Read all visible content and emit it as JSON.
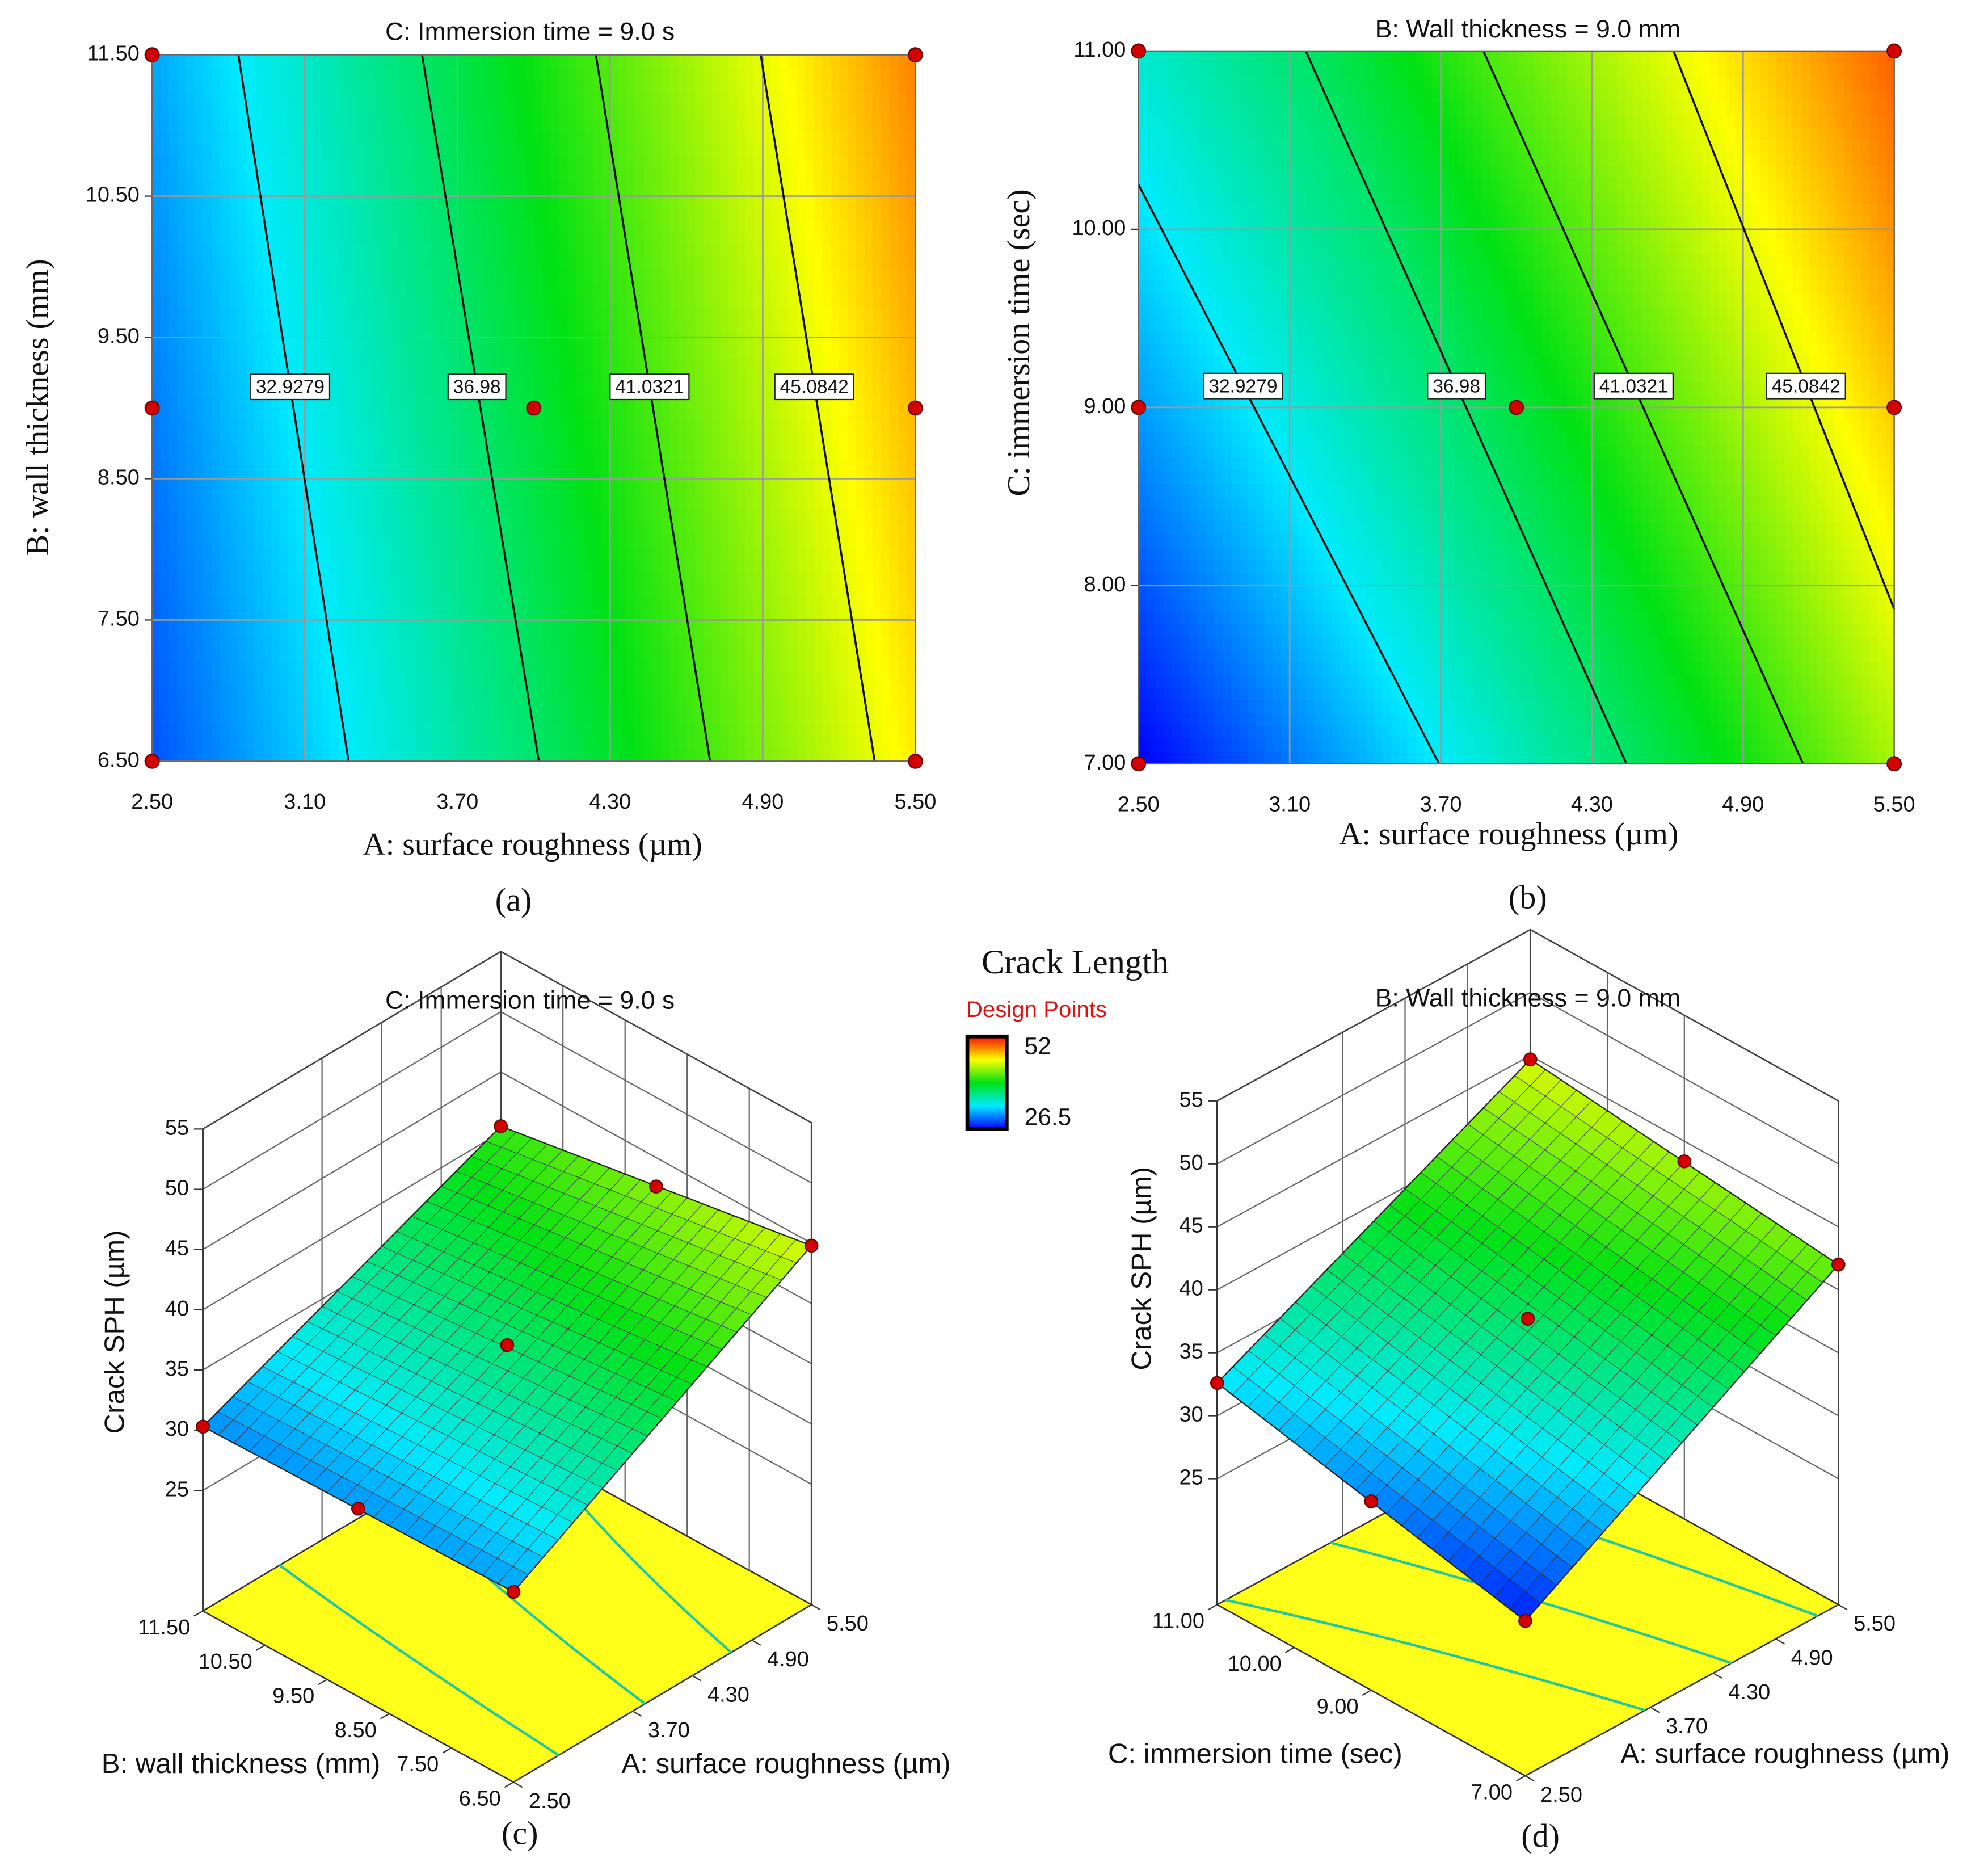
{
  "chart_data": [
    {
      "type": "contour",
      "title": "C: Immersion time = 9.0 s",
      "xlabel": "A: surface roughness (µm)",
      "ylabel": "B: wall thickness (mm)",
      "caption": "(a)",
      "xlim": [
        2.5,
        5.5
      ],
      "ylim": [
        6.5,
        11.5
      ],
      "xticks": [
        {
          "value": 2.5,
          "label": "2.50"
        },
        {
          "value": 3.1,
          "label": "3.10"
        },
        {
          "value": 3.7,
          "label": "3.70"
        },
        {
          "value": 4.3,
          "label": "4.30"
        },
        {
          "value": 4.9,
          "label": "4.90"
        },
        {
          "value": 5.5,
          "label": "5.50"
        }
      ],
      "yticks": [
        {
          "value": 6.5,
          "label": "6.50"
        },
        {
          "value": 7.5,
          "label": "7.50"
        },
        {
          "value": 8.5,
          "label": "8.50"
        },
        {
          "value": 9.5,
          "label": "9.50"
        },
        {
          "value": 10.5,
          "label": "10.50"
        },
        {
          "value": 11.5,
          "label": "11.50"
        }
      ],
      "grid": true,
      "contours": [
        {
          "level": 32.9279,
          "x": [
            2.839,
            3.272
          ],
          "y": [
            11.5,
            6.5
          ]
        },
        {
          "level": 36.98,
          "x": [
            3.561,
            4.02
          ],
          "y": [
            11.5,
            6.5
          ]
        },
        {
          "level": 41.0321,
          "x": [
            4.244,
            4.693
          ],
          "y": [
            11.5,
            6.5
          ]
        },
        {
          "level": 45.0842,
          "x": [
            4.892,
            5.34
          ],
          "y": [
            11.5,
            6.5
          ]
        }
      ],
      "points": {
        "x": [
          2.5,
          2.5,
          2.5,
          4.0,
          5.5,
          5.5,
          5.5
        ],
        "y": [
          6.5,
          9.0,
          11.5,
          9.0,
          6.5,
          9.0,
          11.5
        ]
      },
      "point_color": "#d40000"
    },
    {
      "type": "contour",
      "title": "B: Wall thickness = 9.0 mm",
      "xlabel": "A: surface roughness (µm)",
      "ylabel": "C: immersion time (sec)",
      "caption": "(b)",
      "xlim": [
        2.5,
        5.5
      ],
      "ylim": [
        7.0,
        11.0
      ],
      "xticks": [
        {
          "value": 2.5,
          "label": "2.50"
        },
        {
          "value": 3.1,
          "label": "3.10"
        },
        {
          "value": 3.7,
          "label": "3.70"
        },
        {
          "value": 4.3,
          "label": "4.30"
        },
        {
          "value": 4.9,
          "label": "4.90"
        },
        {
          "value": 5.5,
          "label": "5.50"
        }
      ],
      "yticks": [
        {
          "value": 7,
          "label": "7.00"
        },
        {
          "value": 8,
          "label": "8.00"
        },
        {
          "value": 9,
          "label": "9.00"
        },
        {
          "value": 10,
          "label": "10.00"
        },
        {
          "value": 11,
          "label": "11.00"
        }
      ],
      "grid": true,
      "contours": [
        {
          "level": 32.9279,
          "x": [
            2.5,
            3.693
          ],
          "y": [
            10.25,
            7.0
          ]
        },
        {
          "level": 36.98,
          "x": [
            3.164,
            4.437
          ],
          "y": [
            11.0,
            7.0
          ]
        },
        {
          "level": 41.0321,
          "x": [
            3.869,
            5.138
          ],
          "y": [
            11.0,
            7.0
          ]
        },
        {
          "level": 45.0842,
          "x": [
            4.624,
            5.5
          ],
          "y": [
            11.0,
            7.868
          ]
        }
      ],
      "points": {
        "x": [
          2.5,
          2.5,
          2.5,
          4.0,
          5.5,
          5.5,
          5.5
        ],
        "y": [
          7.0,
          9.0,
          11.0,
          9.0,
          7.0,
          9.0,
          11.0
        ]
      },
      "point_color": "#d40000"
    },
    {
      "type": "surface",
      "title": "C: Immersion time = 9.0 s",
      "xlabel": "A: surface roughness (µm)",
      "ylabel": "B: wall thickness (mm)",
      "zlabel": "Crack SPH (µm)",
      "caption": "(c)",
      "xlim": [
        2.5,
        5.5
      ],
      "ylim": [
        6.5,
        11.5
      ],
      "zlim": [
        15,
        55
      ],
      "xticks": [
        {
          "value": 2.5,
          "label": "2.50"
        },
        {
          "value": 3.7,
          "label": "3.70"
        },
        {
          "value": 4.3,
          "label": "4.30"
        },
        {
          "value": 4.9,
          "label": "4.90"
        },
        {
          "value": 5.5,
          "label": "5.50"
        }
      ],
      "yticks": [
        {
          "value": 6.5,
          "label": "6.50"
        },
        {
          "value": 7.5,
          "label": "7.50"
        },
        {
          "value": 8.5,
          "label": "8.50"
        },
        {
          "value": 9.5,
          "label": "9.50"
        },
        {
          "value": 10.5,
          "label": "10.50"
        },
        {
          "value": 11.5,
          "label": "11.50"
        }
      ],
      "zticks": [
        25,
        30,
        35,
        40,
        45,
        50,
        55
      ],
      "surface": {
        "x": [
          2.5,
          5.5
        ],
        "y": [
          6.5,
          11.5
        ],
        "z": [
          [
            30.8,
            30.3
          ],
          [
            44.8,
            40.5
          ]
        ]
      },
      "points": {
        "x": [
          2.5,
          2.5,
          2.5,
          4.0,
          5.5,
          5.5,
          5.5
        ],
        "y": [
          6.5,
          9.0,
          11.5,
          9.0,
          6.5,
          9.0,
          11.5
        ],
        "z": [
          30.8,
          30.6,
          30.3,
          36.8,
          44.8,
          42.6,
          40.5
        ]
      },
      "point_color": "#d40000",
      "floor_color": "#ffff1a"
    },
    {
      "type": "surface",
      "title": "B: Wall thickness = 9.0 mm",
      "xlabel": "A: surface roughness (µm)",
      "ylabel": "C: immersion time (sec)",
      "zlabel": "Crack SPH (µm)",
      "caption": "(d)",
      "xlim": [
        2.5,
        5.5
      ],
      "ylim": [
        7.0,
        11.0
      ],
      "zlim": [
        15,
        55
      ],
      "xticks": [
        {
          "value": 2.5,
          "label": "2.50"
        },
        {
          "value": 3.7,
          "label": "3.70"
        },
        {
          "value": 4.3,
          "label": "4.30"
        },
        {
          "value": 4.9,
          "label": "4.90"
        },
        {
          "value": 5.5,
          "label": "5.50"
        }
      ],
      "yticks": [
        {
          "value": 7,
          "label": "7.00"
        },
        {
          "value": 9,
          "label": "9.00"
        },
        {
          "value": 10,
          "label": "10.00"
        },
        {
          "value": 11,
          "label": "11.00"
        }
      ],
      "zticks": [
        25,
        30,
        35,
        40,
        45,
        50,
        55
      ],
      "surface": {
        "x": [
          2.5,
          5.5
        ],
        "y": [
          7.0,
          11.0
        ],
        "z": [
          [
            27.3,
            32.6
          ],
          [
            42.0,
            44.7
          ]
        ]
      },
      "points": {
        "x": [
          2.5,
          2.5,
          2.5,
          4.0,
          5.5,
          5.5,
          5.5
        ],
        "y": [
          7.0,
          9.0,
          11.0,
          9.0,
          7.0,
          9.0,
          11.0
        ],
        "z": [
          27.3,
          30.0,
          32.6,
          37.7,
          42.0,
          43.4,
          44.7
        ]
      },
      "point_color": "#d40000",
      "floor_color": "#ffff1a"
    }
  ],
  "colorbar": {
    "title": "Crack Length",
    "subtitle": "Design Points",
    "max": 52,
    "min": 26.5
  }
}
